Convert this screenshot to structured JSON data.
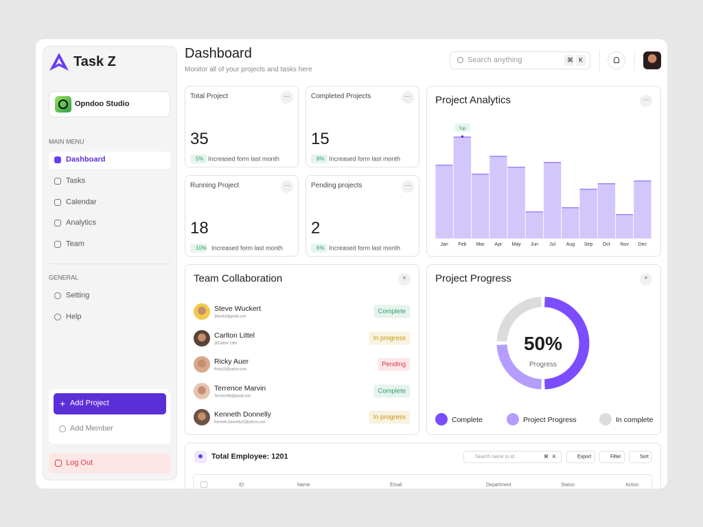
{
  "sidebar": {
    "brand": "Task Z",
    "workspace": "Opndoo Studio",
    "main_menu_title": "MAIN MENU",
    "main_menu": [
      "Dashboard",
      "Tasks",
      "Calendar",
      "Analytics",
      "Team"
    ],
    "general_title": "GENERAL",
    "general_menu": [
      "Setting",
      "Help"
    ],
    "add_project": "Add Project",
    "add_member": "Add Member",
    "logout": "Log Out"
  },
  "header": {
    "title": "Dashboard",
    "subtitle": "Monitor all of your projects and tasks here",
    "search_placeholder": "Search anything",
    "shortcut": [
      "⌘",
      "K"
    ]
  },
  "stats": [
    {
      "title": "Total Project",
      "value": 35,
      "change": "5%",
      "note": "Increased form last month"
    },
    {
      "title": "Completed Projects",
      "value": 15,
      "change": "8%",
      "note": "Increased form last month"
    },
    {
      "title": "Running Project",
      "value": 18,
      "change": "10%",
      "note": "Increased form last month"
    },
    {
      "title": "Pending projects",
      "value": 2,
      "change": "6%",
      "note": "Increased form last month"
    }
  ],
  "team": {
    "title": "Team Collaboration",
    "members": [
      {
        "name": "Steve Wuckert",
        "email": "Steve63@gmail.com",
        "status": "Complete",
        "status_color": "#2e9e6a"
      },
      {
        "name": "Carlton Littel",
        "email": "@Carlton Littel",
        "status": "In progress",
        "status_color": "#c9940a"
      },
      {
        "name": "Ricky Auer",
        "email": "Ricky32@yahoo.com",
        "status": "Pending",
        "status_color": "#d9363e"
      },
      {
        "name": "Terrence Marvin",
        "email": "Terrence96@gmail.com",
        "status": "Complete",
        "status_color": "#2e9e6a"
      },
      {
        "name": "Kenneth Donnelly",
        "email": "Kenneth.Donnelly32@yahoo.com",
        "status": "In progress",
        "status_color": "#c9940a"
      }
    ]
  },
  "employees": {
    "title": "Total Employee: 1201",
    "search_placeholder": "Search name or id",
    "shortcut": [
      "⌘",
      "K"
    ],
    "buttons": [
      "Export",
      "Filter",
      "Sort"
    ],
    "columns": [
      "ID",
      "Name",
      "Email",
      "Department",
      "Status",
      "Action"
    ]
  },
  "chart_data": [
    {
      "type": "bar",
      "title": "Project Analytics",
      "categories": [
        "Jan",
        "Feb",
        "Mar",
        "Apr",
        "May",
        "Jun",
        "Jul",
        "Aug",
        "Sep",
        "Oct",
        "Nov",
        "Dec"
      ],
      "values": [
        108,
        149,
        95,
        121,
        105,
        40,
        112,
        46,
        73,
        81,
        36,
        85
      ],
      "ylim": [
        0,
        180
      ],
      "color": "#d2c6fb",
      "annotation": "Top"
    },
    {
      "type": "pie",
      "title": "Project Progress",
      "center_text": "50%",
      "center_caption": "Progress",
      "categories": [
        "Complete",
        "Project Progress",
        "In complete"
      ],
      "values": [
        50,
        25,
        25
      ],
      "colors": [
        "#7c4dff",
        "#b59cff",
        "#dcdcdc"
      ]
    }
  ]
}
